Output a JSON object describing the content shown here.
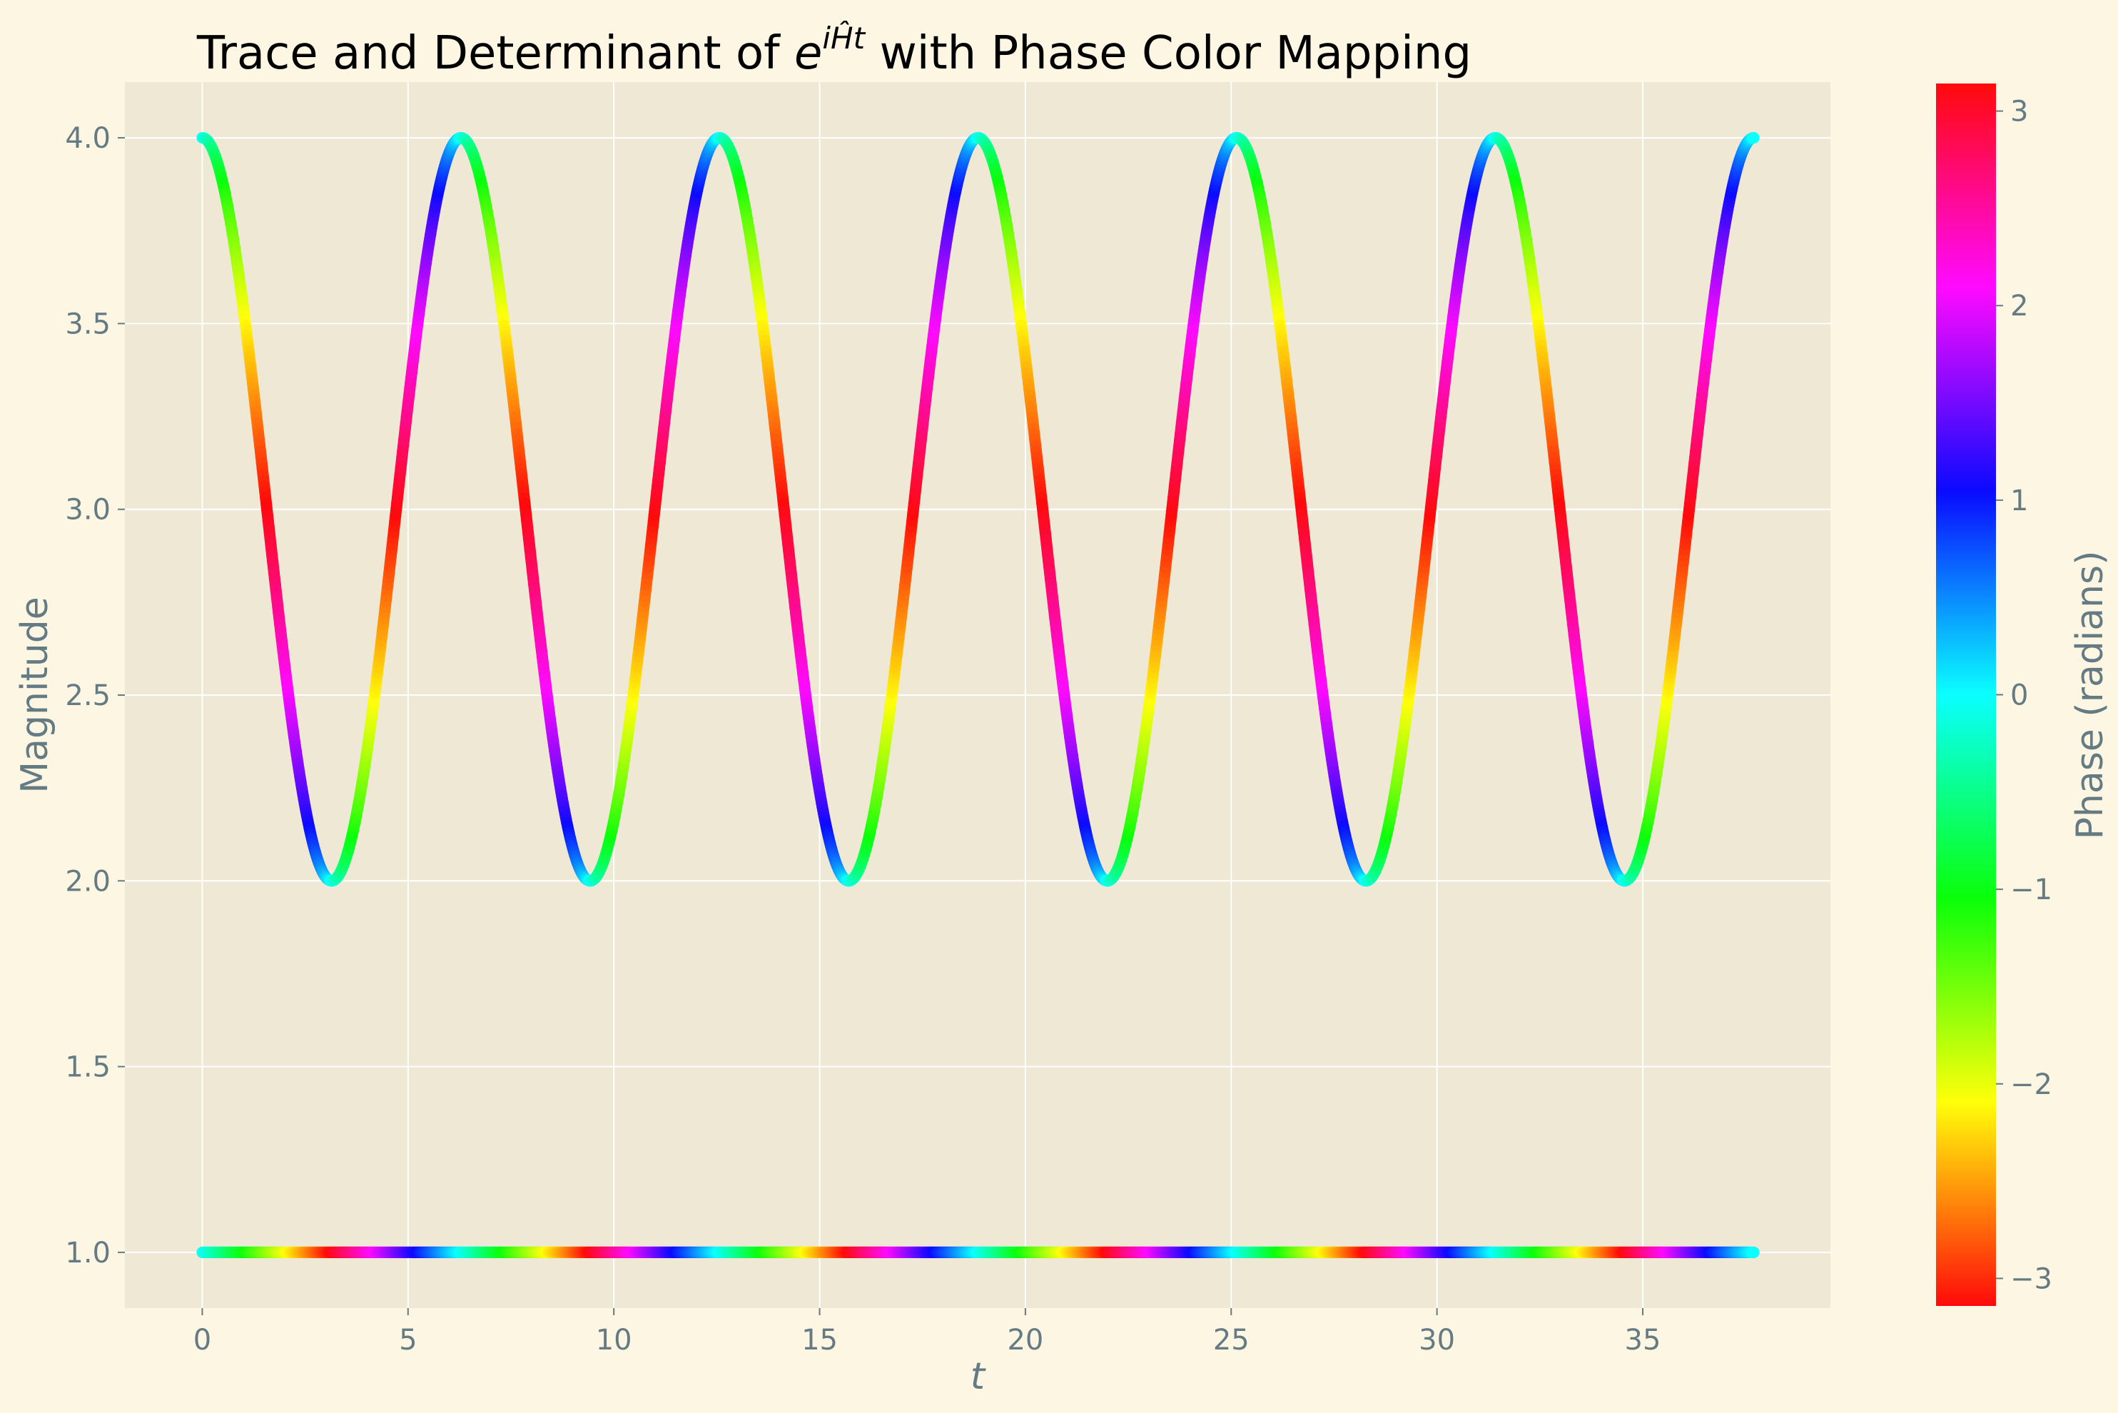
{
  "chart_data": {
    "type": "line",
    "title": {
      "prefix": "Trace and Determinant of ",
      "base": "e",
      "exponent": "iĤt",
      "suffix": " with Phase Color Mapping"
    },
    "xlabel": "t",
    "ylabel": "Magnitude",
    "xlim": [
      -1.88,
      39.56
    ],
    "ylim": [
      0.85,
      4.15
    ],
    "x_ticks": [
      0,
      5,
      10,
      15,
      20,
      25,
      30,
      35
    ],
    "y_ticks": [
      1.0,
      1.5,
      2.0,
      2.5,
      3.0,
      3.5,
      4.0
    ],
    "y_tick_labels": [
      "1.0",
      "1.5",
      "2.0",
      "2.5",
      "3.0",
      "3.5",
      "4.0"
    ],
    "grid": true,
    "colorbar": {
      "label": "Phase (radians)",
      "range": [
        -3.14159,
        3.14159
      ],
      "ticks": [
        -3,
        -2,
        -1,
        0,
        1,
        2,
        3
      ],
      "tick_labels": [
        "−3",
        "−2",
        "−1",
        "0",
        "1",
        "2",
        "3"
      ],
      "colormap": "hsv"
    },
    "series": [
      {
        "description_of_curve": "magnitude(t) = 3 + cos(t), phase(t) = angle(2cos t + 2i sin t ... ) shown via colormap",
        "t_range": [
          0,
          37.699
        ],
        "magnitude_range": [
          2.0,
          4.0
        ],
        "period": 6.2832,
        "maxima_t": [
          0,
          6.283,
          12.566,
          18.85,
          25.133,
          31.416,
          37.699
        ],
        "minima_t": [
          3.142,
          9.425,
          15.708,
          21.991,
          28.274,
          34.558
        ],
        "phase_period": 3.1416
      },
      {
        "t_range": [
          0,
          37.699
        ],
        "magnitude": 1.0,
        "phase_period": 6.2832
      }
    ]
  },
  "colors": {
    "figure_bg": "#fdf6e3",
    "axes_bg": "#eee8d5",
    "grid": "#ffffff",
    "tick_text": "#657b83",
    "title_text": "#000000"
  }
}
